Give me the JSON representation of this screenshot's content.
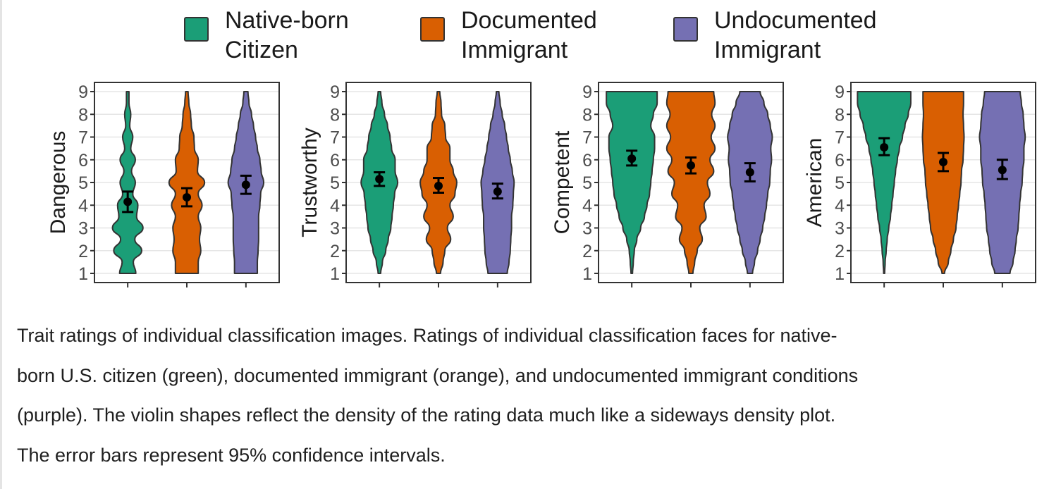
{
  "legend": [
    {
      "line1": "Native-born",
      "line2": "Citizen",
      "color": "#1b9e77"
    },
    {
      "line1": "Documented",
      "line2": "Immigrant",
      "color": "#d95f02"
    },
    {
      "line1": "Undocumented",
      "line2": "Immigrant",
      "color": "#7570b3"
    }
  ],
  "chart_data": [
    {
      "type": "violin",
      "ylabel": "Dangerous",
      "ylim": [
        1,
        9
      ],
      "yticks": [
        "1",
        "2",
        "3",
        "4",
        "5",
        "6",
        "7",
        "8",
        "9"
      ],
      "groups": [
        "Native-born Citizen",
        "Documented Immigrant",
        "Undocumented Immigrant"
      ],
      "series": [
        {
          "name": "Native-born Citizen",
          "mean": 4.15,
          "ci": [
            3.7,
            4.6
          ],
          "density": [
            0.32,
            0.22,
            0.55,
            0.28,
            0.6,
            0.35,
            0.4,
            0.2,
            0.3,
            0.15,
            0.3,
            0.12,
            0.2,
            0.08,
            0.12,
            0.05,
            0.05
          ]
        },
        {
          "name": "Documented Immigrant",
          "mean": 4.35,
          "ci": [
            3.95,
            4.75
          ],
          "density": [
            0.45,
            0.45,
            0.55,
            0.5,
            0.55,
            0.45,
            0.6,
            0.45,
            0.7,
            0.42,
            0.45,
            0.3,
            0.28,
            0.18,
            0.15,
            0.08,
            0.05
          ]
        },
        {
          "name": "Undocumented Immigrant",
          "mean": 4.9,
          "ci": [
            4.5,
            5.3
          ],
          "density": [
            0.45,
            0.45,
            0.48,
            0.5,
            0.5,
            0.5,
            0.55,
            0.58,
            0.7,
            0.6,
            0.55,
            0.45,
            0.38,
            0.3,
            0.22,
            0.12,
            0.08
          ]
        }
      ]
    },
    {
      "type": "violin",
      "ylabel": "Trustworthy",
      "ylim": [
        1,
        9
      ],
      "yticks": [
        "1",
        "2",
        "3",
        "4",
        "5",
        "6",
        "7",
        "8",
        "9"
      ],
      "groups": [
        "Native-born Citizen",
        "Documented Immigrant",
        "Undocumented Immigrant"
      ],
      "series": [
        {
          "name": "Native-born Citizen",
          "mean": 5.15,
          "ci": [
            4.85,
            5.45
          ],
          "density": [
            0.05,
            0.12,
            0.25,
            0.35,
            0.45,
            0.5,
            0.55,
            0.6,
            0.72,
            0.62,
            0.62,
            0.48,
            0.42,
            0.32,
            0.2,
            0.1,
            0.05
          ]
        },
        {
          "name": "Documented Immigrant",
          "mean": 4.85,
          "ci": [
            4.55,
            5.2
          ],
          "density": [
            0.08,
            0.18,
            0.25,
            0.48,
            0.35,
            0.58,
            0.45,
            0.65,
            0.72,
            0.58,
            0.45,
            0.45,
            0.28,
            0.25,
            0.12,
            0.1,
            0.05
          ]
        },
        {
          "name": "Undocumented Immigrant",
          "mean": 4.6,
          "ci": [
            4.3,
            4.95
          ],
          "density": [
            0.38,
            0.45,
            0.5,
            0.52,
            0.55,
            0.55,
            0.6,
            0.62,
            0.65,
            0.58,
            0.5,
            0.42,
            0.35,
            0.28,
            0.18,
            0.1,
            0.05
          ]
        }
      ]
    },
    {
      "type": "violin",
      "ylabel": "Competent",
      "ylim": [
        1,
        9
      ],
      "yticks": [
        "1",
        "2",
        "3",
        "4",
        "5",
        "6",
        "7",
        "8",
        "9"
      ],
      "groups": [
        "Native-born Citizen",
        "Documented Immigrant",
        "Undocumented Immigrant"
      ],
      "series": [
        {
          "name": "Native-born Citizen",
          "mean": 6.05,
          "ci": [
            5.75,
            6.4
          ],
          "density": [
            0.03,
            0.06,
            0.1,
            0.2,
            0.35,
            0.5,
            0.6,
            0.7,
            0.75,
            0.8,
            0.85,
            0.9,
            0.9,
            0.75,
            0.85,
            1.0,
            1.0
          ]
        },
        {
          "name": "Documented Immigrant",
          "mean": 5.75,
          "ci": [
            5.4,
            6.1
          ],
          "density": [
            0.08,
            0.15,
            0.25,
            0.45,
            0.35,
            0.6,
            0.52,
            0.75,
            0.65,
            0.9,
            0.75,
            0.95,
            0.8,
            0.95,
            0.82,
            0.95,
            0.9
          ]
        },
        {
          "name": "Undocumented Immigrant",
          "mean": 5.45,
          "ci": [
            5.05,
            5.85
          ],
          "density": [
            0.1,
            0.18,
            0.3,
            0.4,
            0.5,
            0.58,
            0.65,
            0.7,
            0.78,
            0.8,
            0.85,
            0.82,
            0.88,
            0.8,
            0.7,
            0.55,
            0.4
          ]
        }
      ]
    },
    {
      "type": "violin",
      "ylabel": "American",
      "ylim": [
        1,
        9
      ],
      "yticks": [
        "1",
        "2",
        "3",
        "4",
        "5",
        "6",
        "7",
        "8",
        "9"
      ],
      "groups": [
        "Native-born Citizen",
        "Documented Immigrant",
        "Undocumented Immigrant"
      ],
      "series": [
        {
          "name": "Native-born Citizen",
          "mean": 6.55,
          "ci": [
            6.2,
            6.95
          ],
          "density": [
            0.02,
            0.04,
            0.08,
            0.12,
            0.18,
            0.25,
            0.3,
            0.35,
            0.4,
            0.45,
            0.52,
            0.6,
            0.72,
            0.82,
            0.95,
            1.05,
            1.05
          ]
        },
        {
          "name": "Documented Immigrant",
          "mean": 5.9,
          "ci": [
            5.5,
            6.3
          ],
          "density": [
            0.05,
            0.2,
            0.3,
            0.4,
            0.5,
            0.55,
            0.6,
            0.65,
            0.7,
            0.72,
            0.78,
            0.8,
            0.82,
            0.8,
            0.78,
            0.8,
            0.8
          ]
        },
        {
          "name": "Undocumented Immigrant",
          "mean": 5.55,
          "ci": [
            5.15,
            6.0
          ],
          "density": [
            0.3,
            0.42,
            0.5,
            0.55,
            0.62,
            0.65,
            0.68,
            0.72,
            0.78,
            0.8,
            0.85,
            0.85,
            0.9,
            0.85,
            0.82,
            0.75,
            0.7
          ]
        }
      ]
    }
  ],
  "caption": {
    "line1": "Trait ratings of individual classification images. Ratings of individual classification faces for native-",
    "line2": "born U.S. citizen (green), documented immigrant (orange), and undocumented immigrant conditions",
    "line3": "(purple). The violin shapes reflect the density of the rating data much like a sideways density plot.",
    "line4": "The error bars represent 95% confidence intervals."
  }
}
